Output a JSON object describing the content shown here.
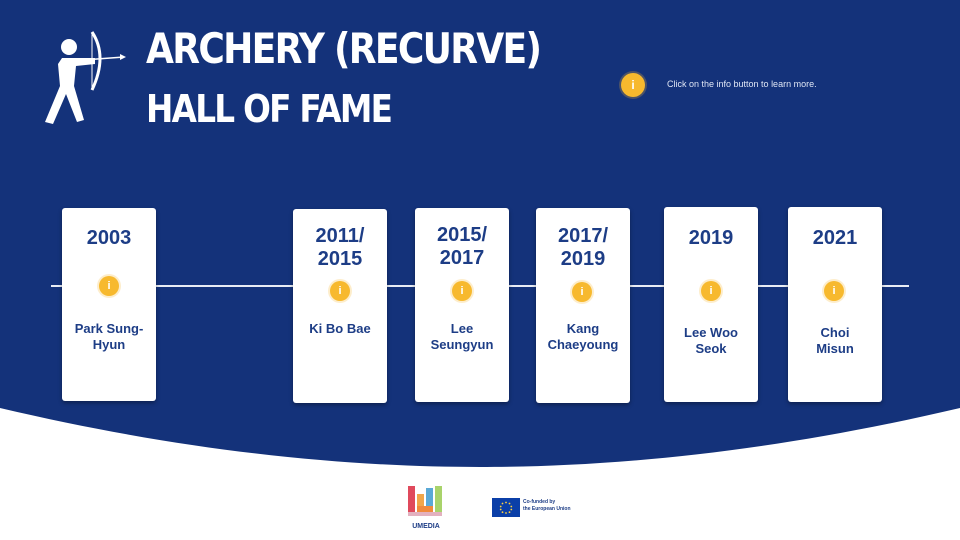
{
  "header": {
    "title": "ARCHERY (RECURVE)",
    "subtitle": "HALL OF FAME",
    "hint": "Click on the info button to learn more.",
    "info_glyph": "i"
  },
  "theme": {
    "background": "#14327a",
    "card": "#ffffff",
    "text": "#1d3d86",
    "accent": "#f7b92e"
  },
  "timeline": [
    {
      "year_line1": "2003",
      "year_line2": "",
      "name_line1": "Park Sung-",
      "name_line2": "Hyun"
    },
    {
      "year_line1": "2011/",
      "year_line2": "2015",
      "name_line1": "Ki Bo Bae",
      "name_line2": ""
    },
    {
      "year_line1": "2015/",
      "year_line2": "2017",
      "name_line1": "Lee",
      "name_line2": "Seungyun"
    },
    {
      "year_line1": "2017/",
      "year_line2": "2019",
      "name_line1": "Kang",
      "name_line2": "Chaeyoung"
    },
    {
      "year_line1": "2019",
      "year_line2": "",
      "name_line1": "Lee Woo",
      "name_line2": "Seok"
    },
    {
      "year_line1": "2021",
      "year_line2": "",
      "name_line1": "Choi",
      "name_line2": "Misun"
    }
  ],
  "footer": {
    "umedia_label": "UMEDIA",
    "eu_line1": "Co-funded by",
    "eu_line2": "the European Union"
  }
}
